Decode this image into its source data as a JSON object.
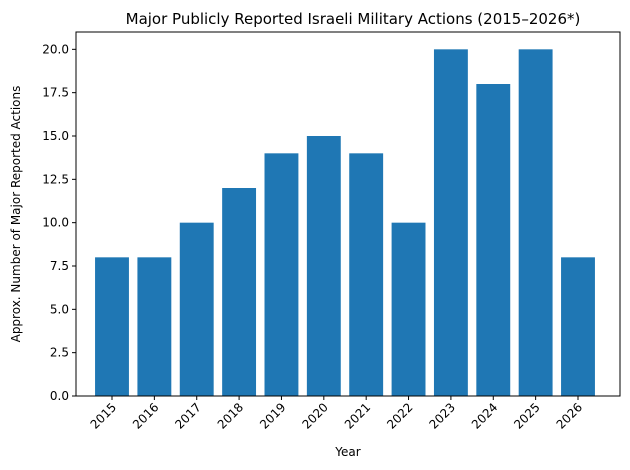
{
  "chart_data": {
    "type": "bar",
    "title": "Major Publicly Reported Israeli Military Actions (2015–2026*)",
    "xlabel": "Year",
    "ylabel": "Approx. Number of Major Reported Actions",
    "categories": [
      "2015",
      "2016",
      "2017",
      "2018",
      "2019",
      "2020",
      "2021",
      "2022",
      "2023",
      "2024",
      "2025",
      "2026"
    ],
    "values": [
      8,
      8,
      10,
      12,
      14,
      15,
      14,
      10,
      20,
      18,
      20,
      8
    ],
    "ylim": [
      0,
      21
    ],
    "yticks": [
      0.0,
      2.5,
      5.0,
      7.5,
      10.0,
      12.5,
      15.0,
      17.5,
      20.0
    ],
    "ytick_labels": [
      "0.0",
      "2.5",
      "5.0",
      "7.5",
      "10.0",
      "12.5",
      "15.0",
      "17.5",
      "20.0"
    ],
    "bar_color": "#1f77b4",
    "grid": false,
    "xtick_rotation_deg": 45
  }
}
